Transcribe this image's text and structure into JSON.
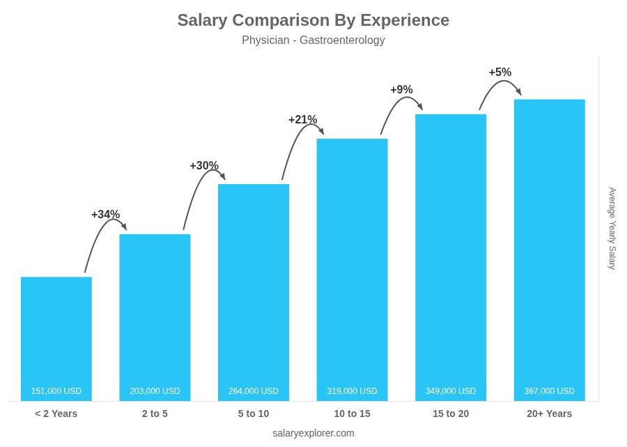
{
  "chart_data": {
    "type": "bar",
    "title": "Salary Comparison By Experience",
    "subtitle": "Physician - Gastroenterology",
    "categories": [
      "< 2 Years",
      "2 to 5",
      "5 to 10",
      "10 to 15",
      "15 to 20",
      "20+ Years"
    ],
    "values": [
      151000,
      203000,
      264000,
      319000,
      349000,
      367000
    ],
    "value_labels": [
      "151,000 USD",
      "203,000 USD",
      "264,000 USD",
      "319,000 USD",
      "349,000 USD",
      "367,000 USD"
    ],
    "data_labels": true,
    "annotations": [
      "+34%",
      "+30%",
      "+21%",
      "+9%",
      "+5%"
    ],
    "ylabel": "Average Yearly Salary",
    "footer": "salaryexplorer.com",
    "color": "#29c5f6",
    "ylim": [
      0,
      420000
    ],
    "grid": false,
    "tick_labels": "x"
  }
}
